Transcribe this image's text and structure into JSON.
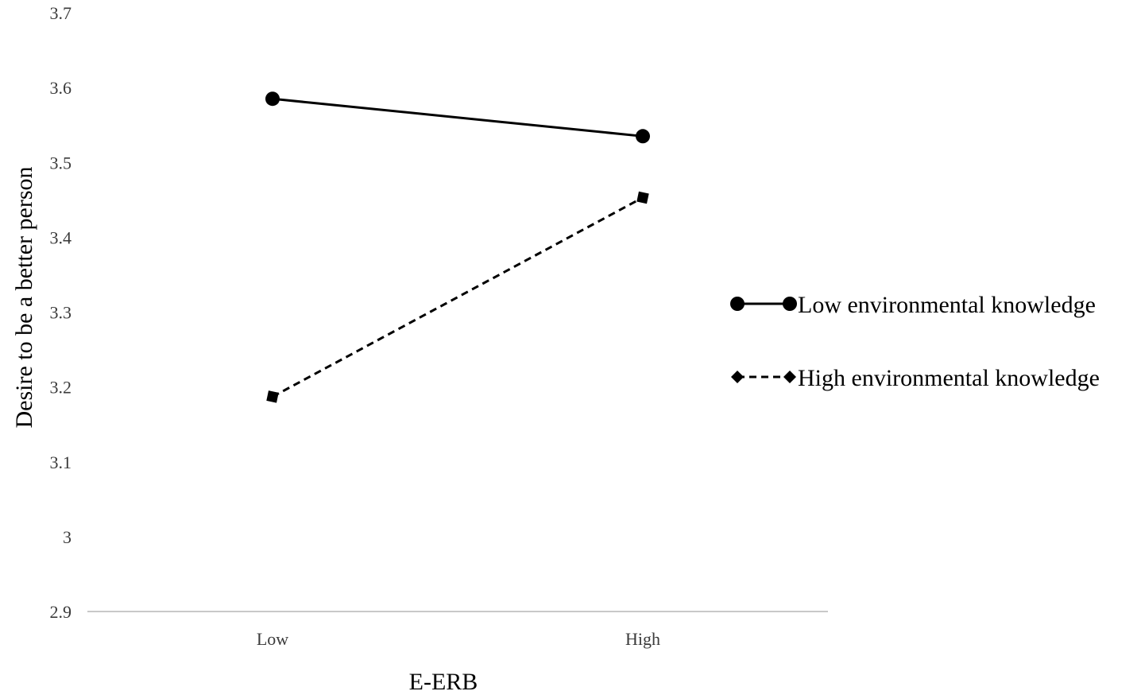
{
  "chart_data": {
    "type": "line",
    "categories": [
      "Low",
      "High"
    ],
    "series": [
      {
        "name": "Low environmental knowledge",
        "values": [
          3.585,
          3.535
        ],
        "line_style": "solid",
        "marker": "circle",
        "color": "#000000"
      },
      {
        "name": "High environmental knowledge",
        "values": [
          3.187,
          3.453
        ],
        "line_style": "dashed",
        "marker": "square",
        "legend_marker": "diamond",
        "color": "#000000"
      }
    ],
    "xlabel": "E-ERB",
    "ylabel": "Desire to be a better person",
    "ylim": [
      2.9,
      3.7
    ],
    "yticks": [
      "2.9",
      "3",
      "3.1",
      "3.2",
      "3.3",
      "3.4",
      "3.5",
      "3.6",
      "3.7"
    ],
    "grid": false,
    "legend_position": "right",
    "axis_color": "#c8c8c8"
  }
}
